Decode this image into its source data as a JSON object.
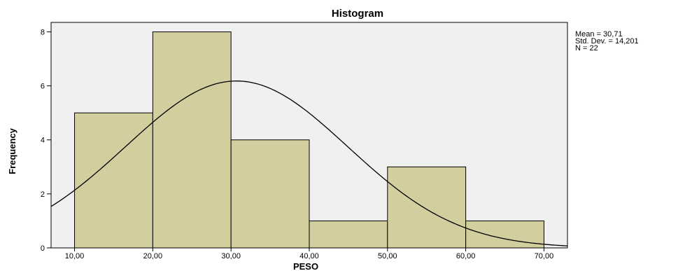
{
  "chart_data": {
    "type": "bar",
    "title": "Histogram",
    "xlabel": "PESO",
    "ylabel": "Frequency",
    "bins": [
      {
        "from": 10,
        "to": 20,
        "count": 5
      },
      {
        "from": 20,
        "to": 30,
        "count": 8
      },
      {
        "from": 30,
        "to": 40,
        "count": 4
      },
      {
        "from": 40,
        "to": 50,
        "count": 1
      },
      {
        "from": 50,
        "to": 60,
        "count": 3
      },
      {
        "from": 60,
        "to": 70,
        "count": 1
      }
    ],
    "x_ticks": [
      10,
      20,
      30,
      40,
      50,
      60,
      70
    ],
    "x_tick_labels": [
      "10,00",
      "20,00",
      "30,00",
      "40,00",
      "50,00",
      "60,00",
      "70,00"
    ],
    "y_ticks": [
      0,
      2,
      4,
      6,
      8
    ],
    "y_tick_labels": [
      "0",
      "2",
      "4",
      "6",
      "8"
    ],
    "xlim": [
      7,
      73
    ],
    "ylim": [
      0,
      8.35
    ],
    "normal_curve": {
      "mean": 30.71,
      "std_dev": 14.201,
      "n": 22,
      "bin_width": 10
    },
    "stats": [
      "Mean = 30,71",
      "Std. Dev. = 14,201",
      "N = 22"
    ],
    "bar_color": "#d3ce9e",
    "plot_background": "#f0f0f0",
    "grid": false,
    "legend": "none"
  }
}
